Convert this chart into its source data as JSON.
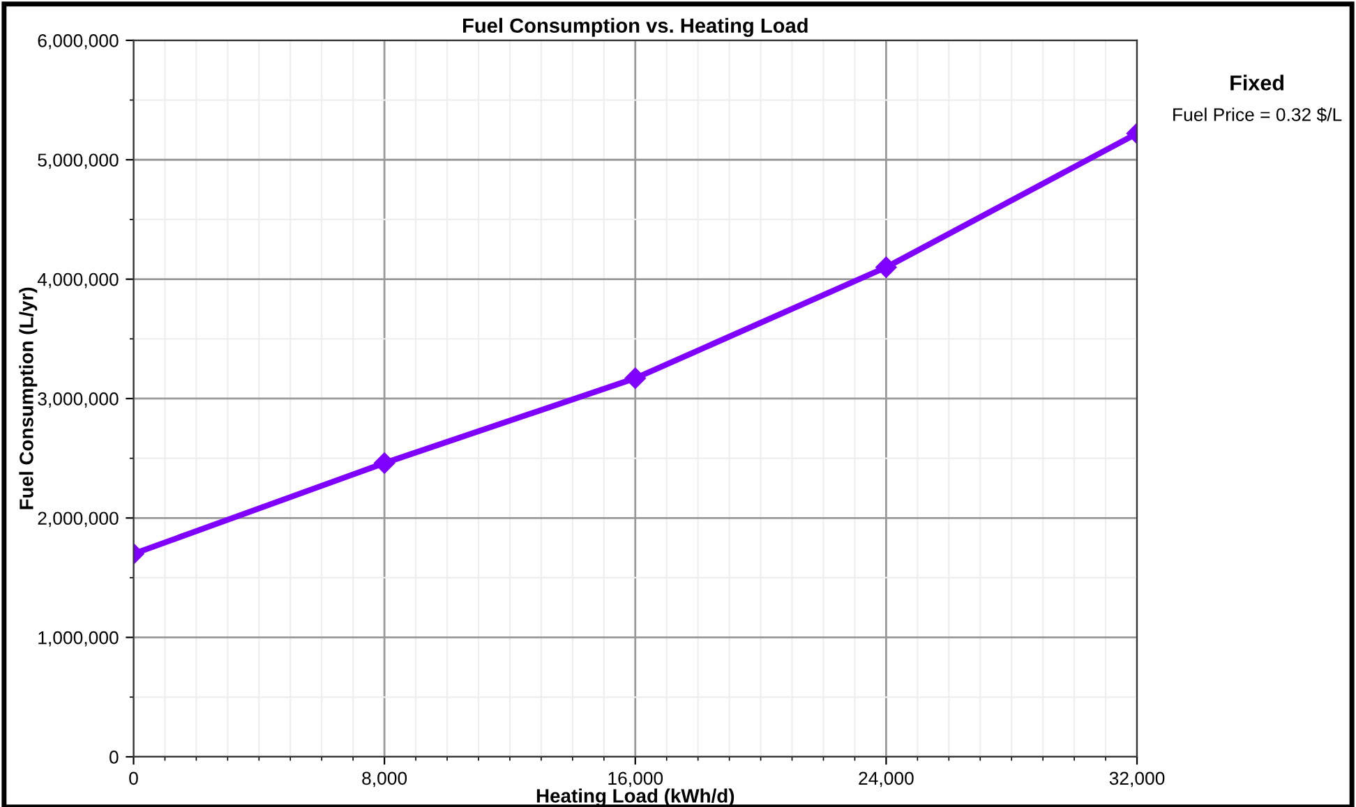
{
  "chart_data": {
    "type": "line",
    "title": "Fuel Consumption vs. Heating Load",
    "xlabel": "Heating Load (kWh/d)",
    "ylabel": "Fuel Consumption (L/yr)",
    "annotations": [
      "Fixed",
      "Fuel Price = 0.32 $/L"
    ],
    "x": [
      0,
      8000,
      16000,
      24000,
      32000
    ],
    "series": [
      {
        "color": "#8000ff",
        "values": [
          1700000,
          2460000,
          3170000,
          4100000,
          5220000
        ]
      }
    ],
    "xlim": [
      0,
      32000
    ],
    "xticks": [
      {
        "value": 0,
        "label": "0"
      },
      {
        "value": 8000,
        "label": "8,000"
      },
      {
        "value": 16000,
        "label": "16,000"
      },
      {
        "value": 24000,
        "label": "24,000"
      },
      {
        "value": 32000,
        "label": "32,000"
      }
    ],
    "ylim": [
      0,
      6000000
    ],
    "yticks": [
      {
        "value": 0,
        "label": "0"
      },
      {
        "value": 1000000,
        "label": "1,000,000"
      },
      {
        "value": 2000000,
        "label": "2,000,000"
      },
      {
        "value": 3000000,
        "label": "3,000,000"
      },
      {
        "value": 4000000,
        "label": "4,000,000"
      },
      {
        "value": 5000000,
        "label": "5,000,000"
      },
      {
        "value": 6000000,
        "label": "6,000,000"
      }
    ],
    "grid": true,
    "marker": "diamond",
    "line_style": "solid",
    "legend": false
  }
}
